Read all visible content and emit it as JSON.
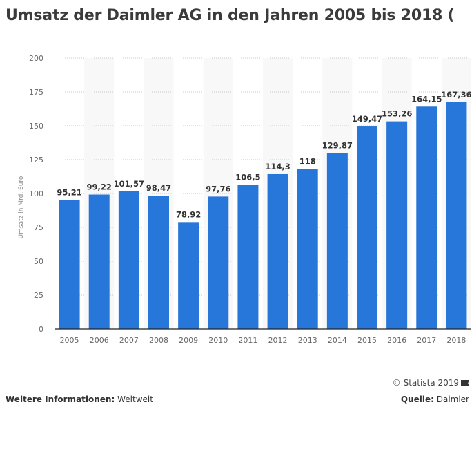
{
  "title": "Umsatz der Daimler AG in den Jahren 2005 bis 2018 (",
  "chart_data": {
    "type": "bar",
    "title": "Umsatz der Daimler AG in den Jahren 2005 bis 2018 (",
    "xlabel": "",
    "ylabel": "Umsatz in Mrd. Euro",
    "categories": [
      "2005",
      "2006",
      "2007",
      "2008",
      "2009",
      "2010",
      "2011",
      "2012",
      "2013",
      "2014",
      "2015",
      "2016",
      "2017",
      "2018"
    ],
    "values": [
      95.21,
      99.22,
      101.57,
      98.47,
      78.92,
      97.76,
      106.5,
      114.3,
      118,
      129.87,
      149.47,
      153.26,
      164.15,
      167.36
    ],
    "data_labels": [
      "95,21",
      "99,22",
      "101,57",
      "98,47",
      "78,92",
      "97,76",
      "106,5",
      "114,3",
      "118",
      "129,87",
      "149,47",
      "153,26",
      "164,15",
      "167,36"
    ],
    "ylim": [
      0,
      200
    ],
    "yticks": [
      0,
      25,
      50,
      75,
      100,
      125,
      150,
      175,
      200
    ],
    "grid": true,
    "legend": "none",
    "bar_color": "#2776d9"
  },
  "footer": {
    "copyright": "© Statista 2019",
    "more_info_label": "Weitere Informationen:",
    "more_info_value": "Weltweit",
    "source_label": "Quelle:",
    "source_value": "Daimler"
  }
}
